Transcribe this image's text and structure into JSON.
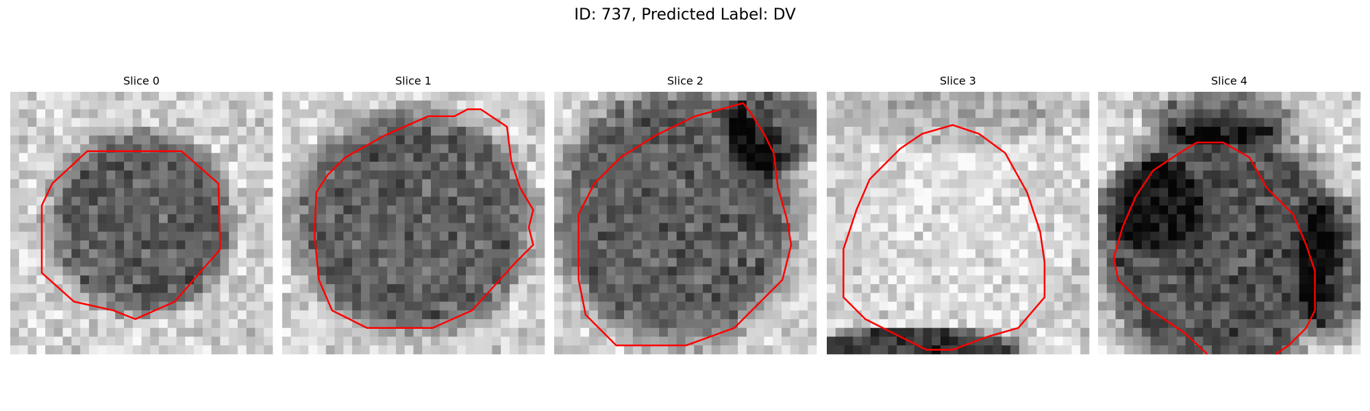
{
  "title": "ID: 737, Predicted Label: DV",
  "panels": [
    {
      "title": "Slice 0"
    },
    {
      "title": "Slice 1"
    },
    {
      "title": "Slice 2"
    },
    {
      "title": "Slice 3"
    },
    {
      "title": "Slice 4"
    }
  ]
}
